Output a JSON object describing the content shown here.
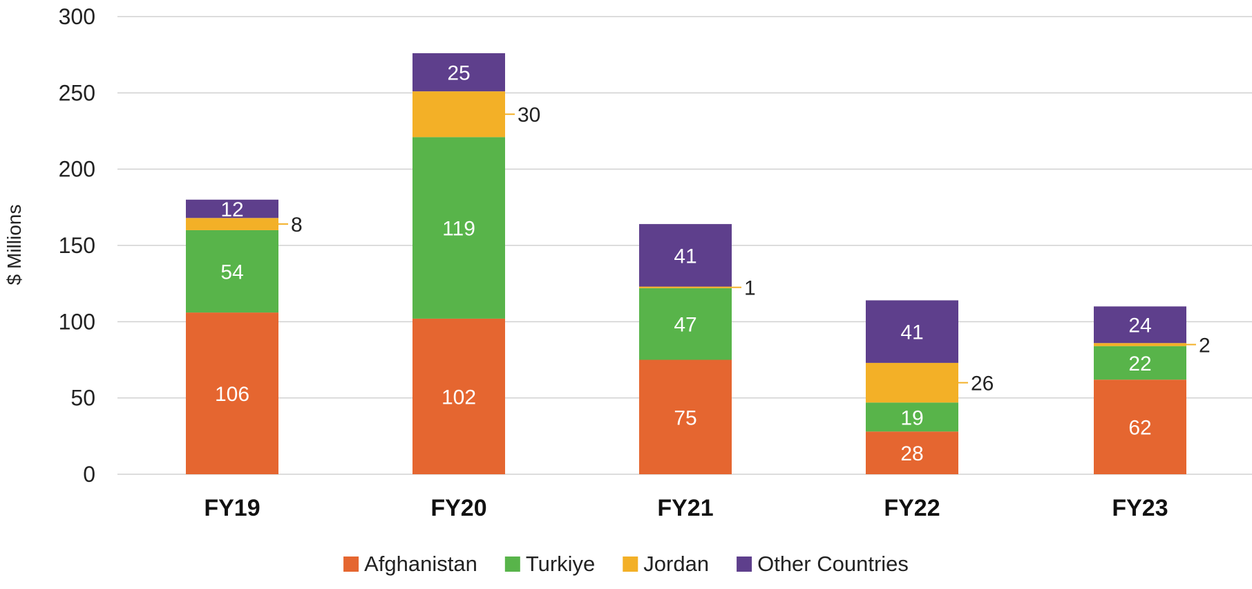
{
  "chart_data": {
    "type": "bar",
    "stacked": true,
    "categories": [
      "FY19",
      "FY20",
      "FY21",
      "FY22",
      "FY23"
    ],
    "series": [
      {
        "name": "Afghanistan",
        "color": "#E56630",
        "values": [
          106,
          102,
          75,
          28,
          62
        ]
      },
      {
        "name": "Turkiye",
        "color": "#58B44A",
        "values": [
          54,
          119,
          47,
          19,
          22
        ]
      },
      {
        "name": "Jordan",
        "color": "#F3B027",
        "values": [
          8,
          30,
          1,
          26,
          2
        ]
      },
      {
        "name": "Other Countries",
        "color": "#5E3F8C",
        "values": [
          12,
          25,
          41,
          41,
          24
        ]
      }
    ],
    "callout_series": "Jordan",
    "ylabel": "$ Millions",
    "xlabel": "",
    "ylim": [
      0,
      300
    ],
    "yticks": [
      0,
      50,
      100,
      150,
      200,
      250,
      300
    ],
    "grid": true,
    "legend_position": "bottom"
  }
}
